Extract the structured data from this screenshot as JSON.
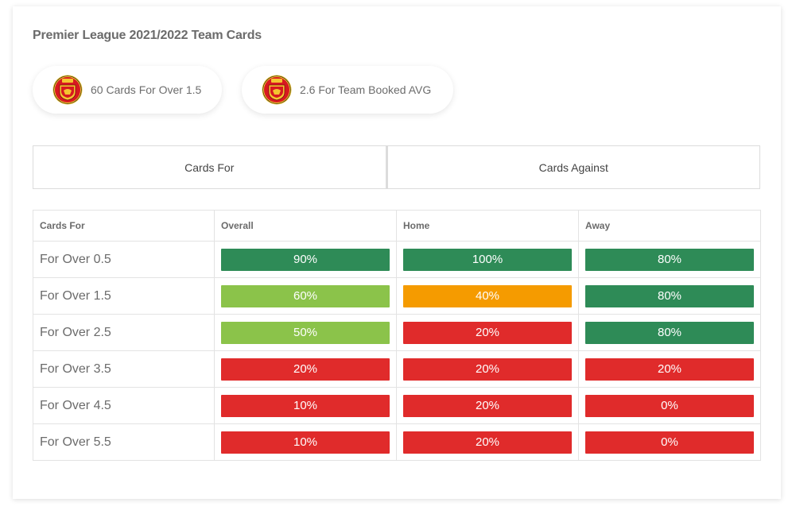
{
  "title": "Premier League 2021/2022 Team Cards",
  "pills": [
    {
      "text": "60 Cards For Over 1.5"
    },
    {
      "text": "2.6 For Team Booked AVG"
    }
  ],
  "tabs": [
    {
      "label": "Cards For"
    },
    {
      "label": "Cards Against"
    }
  ],
  "table": {
    "headers": [
      "Cards For",
      "Overall",
      "Home",
      "Away"
    ],
    "rows": [
      {
        "label": "For Over 0.5",
        "cells": [
          {
            "value": "90%",
            "color": "#2e8b57"
          },
          {
            "value": "100%",
            "color": "#2e8b57"
          },
          {
            "value": "80%",
            "color": "#2e8b57"
          }
        ]
      },
      {
        "label": "For Over 1.5",
        "cells": [
          {
            "value": "60%",
            "color": "#8bc34a"
          },
          {
            "value": "40%",
            "color": "#f59b00"
          },
          {
            "value": "80%",
            "color": "#2e8b57"
          }
        ]
      },
      {
        "label": "For Over 2.5",
        "cells": [
          {
            "value": "50%",
            "color": "#8bc34a"
          },
          {
            "value": "20%",
            "color": "#e02b2b"
          },
          {
            "value": "80%",
            "color": "#2e8b57"
          }
        ]
      },
      {
        "label": "For Over 3.5",
        "cells": [
          {
            "value": "20%",
            "color": "#e02b2b"
          },
          {
            "value": "20%",
            "color": "#e02b2b"
          },
          {
            "value": "20%",
            "color": "#e02b2b"
          }
        ]
      },
      {
        "label": "For Over 4.5",
        "cells": [
          {
            "value": "10%",
            "color": "#e02b2b"
          },
          {
            "value": "20%",
            "color": "#e02b2b"
          },
          {
            "value": "0%",
            "color": "#e02b2b"
          }
        ]
      },
      {
        "label": "For Over 5.5",
        "cells": [
          {
            "value": "10%",
            "color": "#e02b2b"
          },
          {
            "value": "20%",
            "color": "#e02b2b"
          },
          {
            "value": "0%",
            "color": "#e02b2b"
          }
        ]
      }
    ]
  },
  "icons": {
    "crest": "manchester-united-crest-icon"
  }
}
